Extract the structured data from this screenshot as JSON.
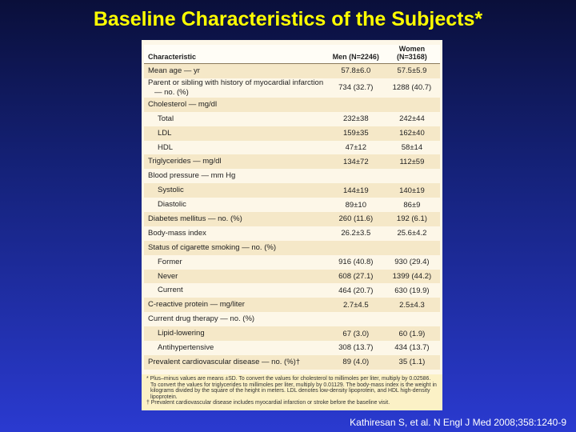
{
  "header": {
    "title": "Baseline Characteristics of the Subjects*"
  },
  "table": {
    "columns": [
      "Characteristic",
      "Men (N=2246)",
      "Women (N=3168)"
    ],
    "rows": [
      {
        "cells": [
          "Mean age — yr",
          "57.8±6.0",
          "57.5±5.9"
        ]
      },
      {
        "cells": [
          "Parent or sibling with history of myocardial infarction — no. (%)",
          "734 (32.7)",
          "1288 (40.7)"
        ]
      },
      {
        "cells": [
          "Cholesterol — mg/dl",
          "",
          ""
        ]
      },
      {
        "cells": [
          "Total",
          "232±38",
          "242±44"
        ],
        "indent": true
      },
      {
        "cells": [
          "LDL",
          "159±35",
          "162±40"
        ],
        "indent": true
      },
      {
        "cells": [
          "HDL",
          "47±12",
          "58±14"
        ],
        "indent": true
      },
      {
        "cells": [
          "Triglycerides — mg/dl",
          "134±72",
          "112±59"
        ]
      },
      {
        "cells": [
          "Blood pressure — mm Hg",
          "",
          ""
        ]
      },
      {
        "cells": [
          "Systolic",
          "144±19",
          "140±19"
        ],
        "indent": true
      },
      {
        "cells": [
          "Diastolic",
          "89±10",
          "86±9"
        ],
        "indent": true
      },
      {
        "cells": [
          "Diabetes mellitus — no. (%)",
          "260 (11.6)",
          "192 (6.1)"
        ]
      },
      {
        "cells": [
          "Body-mass index",
          "26.2±3.5",
          "25.6±4.2"
        ]
      },
      {
        "cells": [
          "Status of cigarette smoking — no. (%)",
          "",
          ""
        ]
      },
      {
        "cells": [
          "Former",
          "916 (40.8)",
          "930 (29.4)"
        ],
        "indent": true
      },
      {
        "cells": [
          "Never",
          "608 (27.1)",
          "1399 (44.2)"
        ],
        "indent": true
      },
      {
        "cells": [
          "Current",
          "464 (20.7)",
          "630 (19.9)"
        ],
        "indent": true
      },
      {
        "cells": [
          "C-reactive protein — mg/liter",
          "2.7±4.5",
          "2.5±4.3"
        ]
      },
      {
        "cells": [
          "Current drug therapy — no. (%)",
          "",
          ""
        ]
      },
      {
        "cells": [
          "Lipid-lowering",
          "67 (3.0)",
          "60 (1.9)"
        ],
        "indent": true
      },
      {
        "cells": [
          "Antihypertensive",
          "308 (13.7)",
          "434 (13.7)"
        ],
        "indent": true
      },
      {
        "cells": [
          "Prevalent cardiovascular disease — no. (%)†",
          "89 (4.0)",
          "35 (1.1)"
        ]
      }
    ],
    "footnotes": [
      "* Plus–minus values are means ±SD. To convert the values for cholesterol to millimoles per liter, multiply by 0.02586. To convert the values for triglycerides to millimoles per liter, multiply by 0.01129. The body-mass index is the weight in kilograms divided by the square of the height in meters. LDL denotes low-density lipoprotein, and HDL high-density lipoprotein.",
      "† Prevalent cardiovascular disease includes myocardial infarction or stroke before the baseline visit."
    ]
  },
  "citation": "Kathiresan S, et al. N Engl J Med 2008;358:1240-9"
}
